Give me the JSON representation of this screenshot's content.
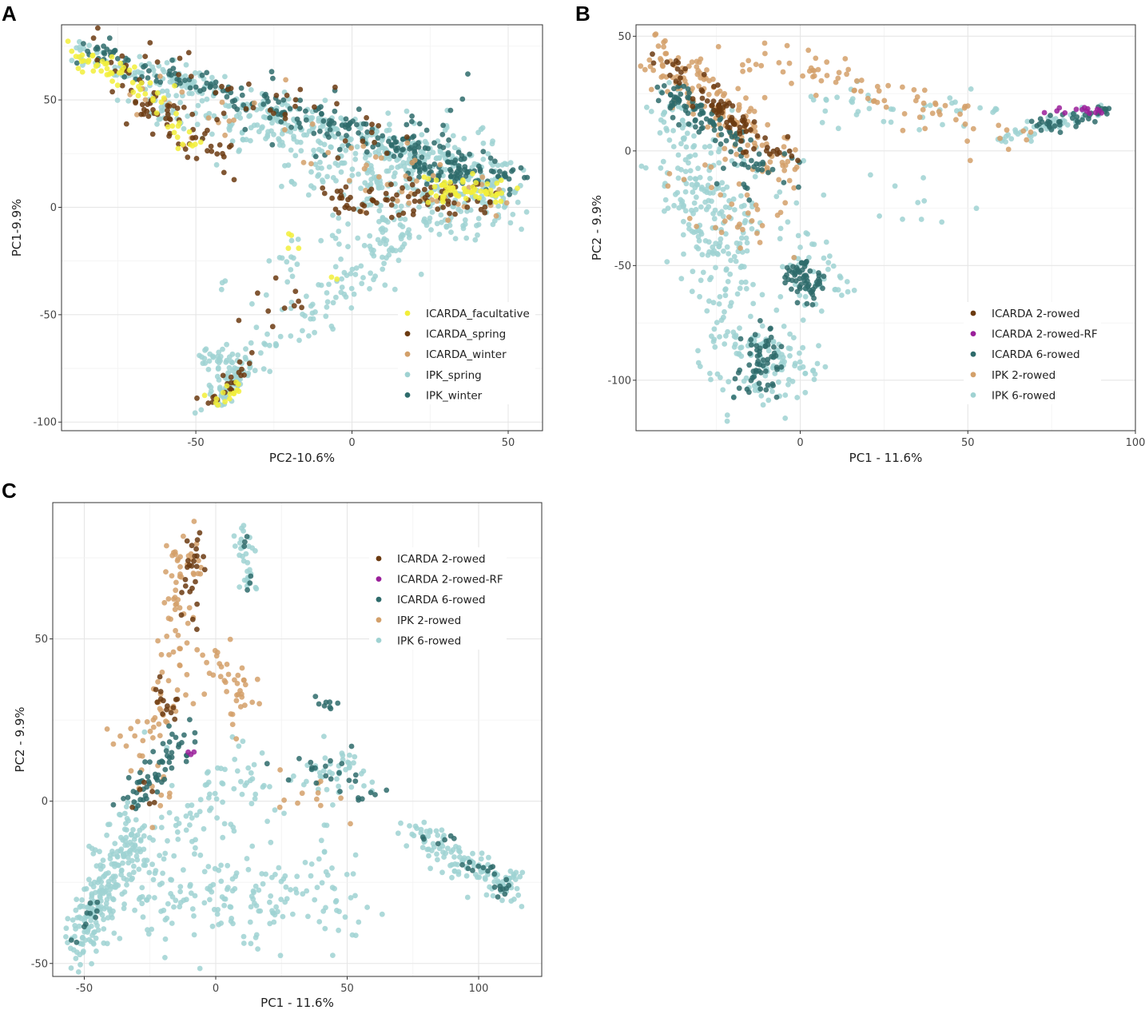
{
  "figure": {
    "panels": [
      "A",
      "B",
      "C"
    ]
  },
  "colors": {
    "ICARDA_facultative": "#f2ee3a",
    "ICARDA_spring": "#6b3a10",
    "ICARDA_winter": "#d3a06a",
    "IPK_spring": "#9fd2d2",
    "IPK_winter": "#2e6b6b",
    "ICARDA 2-rowed": "#6b3a10",
    "ICARDA 2-rowed-RF": "#9a1f9a",
    "ICARDA 6-rowed": "#2e6b6b",
    "IPK 2-rowed": "#d3a06a",
    "IPK 6-rowed": "#9fd2d2"
  },
  "chart_data": [
    {
      "panel": "A",
      "type": "scatter",
      "xlabel": "PC2-10.6%",
      "ylabel": "PC1-9.9%",
      "xlim": [
        -93,
        61
      ],
      "ylim": [
        -104,
        85
      ],
      "xticks": [
        -50,
        0,
        50
      ],
      "yticks": [
        -100,
        -50,
        0,
        50
      ],
      "grid": true,
      "legend_position": "bottom-right",
      "legend": [
        "ICARDA_facultative",
        "ICARDA_spring",
        "ICARDA_winter",
        "IPK_spring",
        "IPK_winter"
      ],
      "series": [
        {
          "name": "IPK_spring",
          "clusters": [
            {
              "from": [
                -90,
                73
              ],
              "to": [
                50,
                13
              ],
              "n": 260,
              "spread": 4
            },
            {
              "from": [
                -68,
                50
              ],
              "to": [
                -10,
                30
              ],
              "n": 90,
              "spread": 6
            },
            {
              "from": [
                -10,
                20
              ],
              "to": [
                50,
                5
              ],
              "n": 160,
              "spread": 7
            },
            {
              "from": [
                -30,
                35
              ],
              "to": [
                40,
                22
              ],
              "n": 120,
              "spread": 8
            },
            {
              "from": [
                0,
                -5
              ],
              "to": [
                50,
                -5
              ],
              "n": 90,
              "spread": 5
            },
            {
              "from": [
                -45,
                -90
              ],
              "to": [
                20,
                -10
              ],
              "n": 110,
              "spread": 4
            },
            {
              "from": [
                -45,
                -65
              ],
              "to": [
                -38,
                -75
              ],
              "n": 40,
              "spread": 4
            },
            {
              "from": [
                -30,
                -40
              ],
              "to": [
                10,
                -20
              ],
              "n": 40,
              "spread": 10
            },
            {
              "from": [
                -44,
                -93
              ],
              "to": [
                -35,
                -75
              ],
              "n": 40,
              "spread": 2
            }
          ]
        },
        {
          "name": "IPK_winter",
          "clusters": [
            {
              "from": [
                -88,
                74
              ],
              "to": [
                52,
                13
              ],
              "n": 180,
              "spread": 3
            },
            {
              "from": [
                -40,
                55
              ],
              "to": [
                40,
                25
              ],
              "n": 60,
              "spread": 9
            },
            {
              "from": [
                20,
                18
              ],
              "to": [
                52,
                12
              ],
              "n": 50,
              "spread": 3
            }
          ]
        },
        {
          "name": "ICARDA_winter",
          "clusters": [
            {
              "from": [
                -80,
                60
              ],
              "to": [
                45,
                5
              ],
              "n": 40,
              "spread": 8
            },
            {
              "from": [
                0,
                5
              ],
              "to": [
                45,
                5
              ],
              "n": 20,
              "spread": 5
            }
          ]
        },
        {
          "name": "ICARDA_spring",
          "clusters": [
            {
              "from": [
                -72,
                55
              ],
              "to": [
                -40,
                20
              ],
              "n": 60,
              "spread": 4
            },
            {
              "from": [
                -86,
                72
              ],
              "to": [
                20,
                30
              ],
              "n": 50,
              "spread": 6
            },
            {
              "from": [
                -10,
                2
              ],
              "to": [
                45,
                5
              ],
              "n": 80,
              "spread": 4
            },
            {
              "from": [
                -45,
                -92
              ],
              "to": [
                -32,
                -70
              ],
              "n": 22,
              "spread": 2
            },
            {
              "from": [
                -30,
                -50
              ],
              "to": [
                -10,
                -40
              ],
              "n": 10,
              "spread": 5
            }
          ]
        },
        {
          "name": "ICARDA_facultative",
          "clusters": [
            {
              "from": [
                -90,
                73
              ],
              "to": [
                -62,
                52
              ],
              "n": 50,
              "spread": 3
            },
            {
              "from": [
                -60,
                45
              ],
              "to": [
                -50,
                30
              ],
              "n": 15,
              "spread": 3
            },
            {
              "from": [
                22,
                8
              ],
              "to": [
                48,
                8
              ],
              "n": 60,
              "spread": 3
            },
            {
              "from": [
                -44,
                -93
              ],
              "to": [
                -38,
                -82
              ],
              "n": 15,
              "spread": 2
            },
            {
              "from": [
                -25,
                -10
              ],
              "to": [
                -5,
                -35
              ],
              "n": 6,
              "spread": 4
            }
          ]
        }
      ]
    },
    {
      "panel": "B",
      "type": "scatter",
      "xlabel": "PC1 - 11.6%",
      "ylabel": "PC2 - 9.9%",
      "xlim": [
        -49,
        100
      ],
      "ylim": [
        -122,
        55
      ],
      "xticks": [
        0,
        50,
        100
      ],
      "yticks": [
        -100,
        -50,
        0,
        50
      ],
      "grid": true,
      "legend_position": "bottom-right",
      "legend": [
        "ICARDA 2-rowed",
        "ICARDA 2-rowed-RF",
        "ICARDA 6-rowed",
        "IPK 2-rowed",
        "IPK 6-rowed"
      ],
      "series": [
        {
          "name": "IPK 6-rowed",
          "clusters": [
            {
              "from": [
                -40,
                20
              ],
              "to": [
                -12,
                -110
              ],
              "n": 220,
              "spread": 6
            },
            {
              "from": [
                -30,
                5
              ],
              "to": [
                -20,
                -50
              ],
              "n": 100,
              "spread": 8
            },
            {
              "from": [
                -10,
                -80
              ],
              "to": [
                0,
                -100
              ],
              "n": 60,
              "spread": 5
            },
            {
              "from": [
                0,
                -40
              ],
              "to": [
                10,
                -60
              ],
              "n": 40,
              "spread": 5
            },
            {
              "from": [
                5,
                20
              ],
              "to": [
                60,
                15
              ],
              "n": 40,
              "spread": 5
            },
            {
              "from": [
                60,
                5
              ],
              "to": [
                90,
                18
              ],
              "n": 50,
              "spread": 2
            },
            {
              "from": [
                10,
                -10
              ],
              "to": [
                50,
                -30
              ],
              "n": 12,
              "spread": 10
            }
          ]
        },
        {
          "name": "IPK 2-rowed",
          "clusters": [
            {
              "from": [
                -43,
                45
              ],
              "to": [
                -5,
                -10
              ],
              "n": 160,
              "spread": 5
            },
            {
              "from": [
                -20,
                40
              ],
              "to": [
                20,
                30
              ],
              "n": 40,
              "spread": 5
            },
            {
              "from": [
                20,
                25
              ],
              "to": [
                65,
                5
              ],
              "n": 40,
              "spread": 5
            },
            {
              "from": [
                -30,
                -10
              ],
              "to": [
                -10,
                -40
              ],
              "n": 30,
              "spread": 6
            }
          ]
        },
        {
          "name": "ICARDA 6-rowed",
          "clusters": [
            {
              "from": [
                -40,
                25
              ],
              "to": [
                -20,
                5
              ],
              "n": 80,
              "spread": 3
            },
            {
              "from": [
                -10,
                -80
              ],
              "to": [
                -13,
                -105
              ],
              "n": 60,
              "spread": 3
            },
            {
              "from": [
                0,
                -50
              ],
              "to": [
                3,
                -65
              ],
              "n": 60,
              "spread": 3
            },
            {
              "from": [
                -20,
                0
              ],
              "to": [
                -8,
                -10
              ],
              "n": 30,
              "spread": 5
            },
            {
              "from": [
                70,
                10
              ],
              "to": [
                92,
                18
              ],
              "n": 40,
              "spread": 1.5
            }
          ]
        },
        {
          "name": "ICARDA 2-rowed",
          "clusters": [
            {
              "from": [
                -40,
                40
              ],
              "to": [
                -5,
                -5
              ],
              "n": 60,
              "spread": 3
            },
            {
              "from": [
                -25,
                20
              ],
              "to": [
                -15,
                10
              ],
              "n": 20,
              "spread": 3
            }
          ]
        },
        {
          "name": "ICARDA 2-rowed-RF",
          "clusters": [
            {
              "from": [
                70,
                17
              ],
              "to": [
                92,
                18
              ],
              "n": 14,
              "spread": 1
            }
          ]
        }
      ]
    },
    {
      "panel": "C",
      "type": "scatter",
      "xlabel": "PC1 - 11.6%",
      "ylabel": "PC2 - 9.9%",
      "xlim": [
        -62,
        124
      ],
      "ylim": [
        -54,
        92
      ],
      "xticks": [
        -50,
        0,
        50,
        100
      ],
      "yticks": [
        -50,
        0,
        50
      ],
      "grid": true,
      "legend_position": "top-right",
      "legend": [
        "ICARDA 2-rowed",
        "ICARDA 2-rowed-RF",
        "ICARDA 6-rowed",
        "IPK 2-rowed",
        "IPK 6-rowed"
      ],
      "series": [
        {
          "name": "IPK 6-rowed",
          "clusters": [
            {
              "from": [
                -55,
                -48
              ],
              "to": [
                -30,
                -5
              ],
              "n": 220,
              "spread": 4
            },
            {
              "from": [
                -40,
                -25
              ],
              "to": [
                10,
                10
              ],
              "n": 90,
              "spread": 8
            },
            {
              "from": [
                -30,
                -30
              ],
              "to": [
                55,
                -30
              ],
              "n": 170,
              "spread": 7
            },
            {
              "from": [
                10,
                84
              ],
              "to": [
                14,
                65
              ],
              "n": 30,
              "spread": 2
            },
            {
              "from": [
                75,
                -10
              ],
              "to": [
                115,
                -27
              ],
              "n": 130,
              "spread": 3
            },
            {
              "from": [
                35,
                12
              ],
              "to": [
                62,
                6
              ],
              "n": 40,
              "spread": 4
            },
            {
              "from": [
                -10,
                5
              ],
              "to": [
                40,
                -10
              ],
              "n": 40,
              "spread": 8
            }
          ]
        },
        {
          "name": "IPK 2-rowed",
          "clusters": [
            {
              "from": [
                -10,
                80
              ],
              "to": [
                -20,
                20
              ],
              "n": 80,
              "spread": 4
            },
            {
              "from": [
                0,
                45
              ],
              "to": [
                10,
                30
              ],
              "n": 40,
              "spread": 4
            },
            {
              "from": [
                -30,
                25
              ],
              "to": [
                -20,
                0
              ],
              "n": 25,
              "spread": 5
            },
            {
              "from": [
                20,
                10
              ],
              "to": [
                45,
                0
              ],
              "n": 12,
              "spread": 6
            }
          ]
        },
        {
          "name": "ICARDA 6-rowed",
          "clusters": [
            {
              "from": [
                -35,
                0
              ],
              "to": [
                -10,
                20
              ],
              "n": 60,
              "spread": 3
            },
            {
              "from": [
                10,
                80
              ],
              "to": [
                14,
                65
              ],
              "n": 6,
              "spread": 1.5
            },
            {
              "from": [
                30,
                12
              ],
              "to": [
                60,
                5
              ],
              "n": 25,
              "spread": 4
            },
            {
              "from": [
                38,
                32
              ],
              "to": [
                45,
                28
              ],
              "n": 8,
              "spread": 2
            },
            {
              "from": [
                80,
                -8
              ],
              "to": [
                110,
                -28
              ],
              "n": 25,
              "spread": 3
            },
            {
              "from": [
                -55,
                -45
              ],
              "to": [
                -45,
                -30
              ],
              "n": 10,
              "spread": 2
            }
          ]
        },
        {
          "name": "ICARDA 2-rowed",
          "clusters": [
            {
              "from": [
                -8,
                82
              ],
              "to": [
                -10,
                50
              ],
              "n": 25,
              "spread": 2
            },
            {
              "from": [
                -20,
                40
              ],
              "to": [
                -17,
                25
              ],
              "n": 14,
              "spread": 2
            },
            {
              "from": [
                -30,
                5
              ],
              "to": [
                -20,
                -5
              ],
              "n": 6,
              "spread": 3
            }
          ]
        },
        {
          "name": "ICARDA 2-rowed-RF",
          "clusters": [
            {
              "from": [
                -12,
                17
              ],
              "to": [
                -8,
                15
              ],
              "n": 3,
              "spread": 1
            }
          ]
        }
      ]
    }
  ]
}
